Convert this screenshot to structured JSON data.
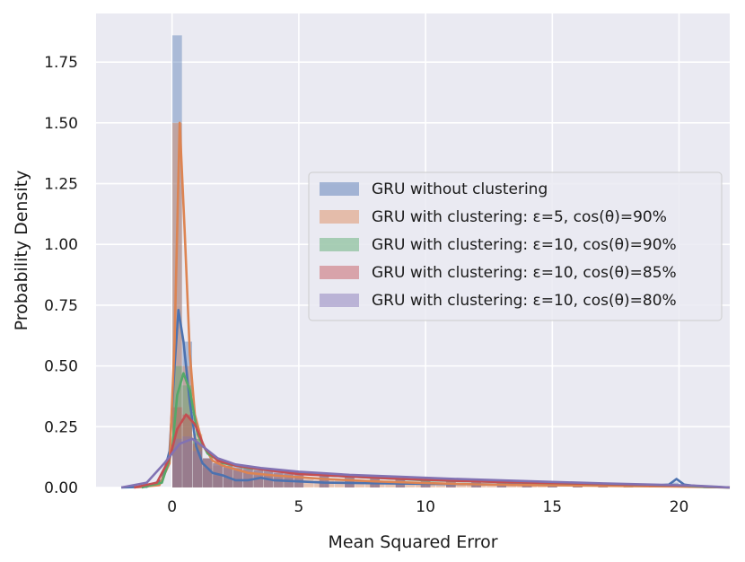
{
  "chart_data": {
    "type": "area",
    "xlabel": "Mean Squared Error",
    "ylabel": "Probability Density",
    "xlim": [
      -3,
      22
    ],
    "ylim": [
      0,
      1.95
    ],
    "xticks": [
      0,
      5,
      10,
      15,
      20
    ],
    "yticks": [
      0.0,
      0.25,
      0.5,
      0.75,
      1.0,
      1.25,
      1.5,
      1.75
    ],
    "xtick_labels": [
      "0",
      "5",
      "10",
      "15",
      "20"
    ],
    "ytick_labels": [
      "0.00",
      "0.25",
      "0.50",
      "0.75",
      "1.00",
      "1.25",
      "1.50",
      "1.75"
    ],
    "grid": true,
    "legend_position": "center-right",
    "bin_width": 0.4,
    "series": [
      {
        "name": "GRU without clustering",
        "color": "#4c72b0",
        "hist": [
          [
            0.2,
            1.86
          ],
          [
            0.6,
            0.6
          ],
          [
            1.0,
            0.2
          ],
          [
            1.4,
            0.08
          ],
          [
            1.8,
            0.05
          ],
          [
            2.2,
            0.04
          ],
          [
            2.6,
            0.03
          ],
          [
            3.0,
            0.03
          ],
          [
            19.8,
            0.02
          ]
        ],
        "kde": [
          [
            -2,
            0
          ],
          [
            -1,
            0.003
          ],
          [
            -0.4,
            0.03
          ],
          [
            -0.1,
            0.15
          ],
          [
            0.1,
            0.5
          ],
          [
            0.25,
            0.73
          ],
          [
            0.45,
            0.6
          ],
          [
            0.7,
            0.35
          ],
          [
            0.95,
            0.17
          ],
          [
            1.2,
            0.1
          ],
          [
            1.6,
            0.06
          ],
          [
            2.0,
            0.05
          ],
          [
            2.5,
            0.03
          ],
          [
            3.0,
            0.03
          ],
          [
            3.5,
            0.04
          ],
          [
            4.0,
            0.03
          ],
          [
            6,
            0.02
          ],
          [
            10,
            0.015
          ],
          [
            15,
            0.01
          ],
          [
            19.0,
            0.008
          ],
          [
            19.6,
            0.012
          ],
          [
            19.9,
            0.035
          ],
          [
            20.2,
            0.012
          ],
          [
            21,
            0.002
          ],
          [
            22,
            0
          ]
        ]
      },
      {
        "name": "GRU with clustering: ε=5, cos(θ)=90%",
        "color": "#dd8452",
        "hist": [
          [
            0.2,
            1.5
          ],
          [
            0.6,
            0.5
          ],
          [
            1.0,
            0.22
          ],
          [
            1.4,
            0.12
          ],
          [
            1.8,
            0.09
          ],
          [
            2.2,
            0.08
          ],
          [
            2.6,
            0.07
          ],
          [
            3.0,
            0.06
          ],
          [
            3.4,
            0.05
          ],
          [
            3.8,
            0.05
          ],
          [
            4.2,
            0.04
          ],
          [
            4.6,
            0.04
          ],
          [
            5.0,
            0.04
          ],
          [
            5.4,
            0.035
          ],
          [
            5.8,
            0.03
          ],
          [
            6.2,
            0.03
          ],
          [
            6.6,
            0.03
          ],
          [
            7.0,
            0.025
          ],
          [
            7.4,
            0.025
          ],
          [
            7.8,
            0.02
          ],
          [
            8.2,
            0.02
          ],
          [
            8.6,
            0.02
          ],
          [
            9.0,
            0.02
          ],
          [
            9.4,
            0.018
          ],
          [
            9.8,
            0.018
          ],
          [
            10.2,
            0.016
          ],
          [
            10.6,
            0.015
          ],
          [
            11.0,
            0.015
          ],
          [
            11.4,
            0.014
          ],
          [
            11.8,
            0.013
          ],
          [
            12.2,
            0.012
          ],
          [
            12.6,
            0.012
          ],
          [
            13.0,
            0.011
          ],
          [
            13.4,
            0.011
          ],
          [
            13.8,
            0.01
          ],
          [
            14.2,
            0.01
          ],
          [
            14.6,
            0.01
          ],
          [
            15.0,
            0.009
          ],
          [
            16.0,
            0.008
          ],
          [
            17.0,
            0.007
          ],
          [
            18.0,
            0.006
          ],
          [
            19.0,
            0.005
          ]
        ],
        "kde": [
          [
            -1.5,
            0
          ],
          [
            -0.5,
            0.01
          ],
          [
            -0.1,
            0.1
          ],
          [
            0.1,
            0.6
          ],
          [
            0.3,
            1.5
          ],
          [
            0.5,
            1.05
          ],
          [
            0.7,
            0.55
          ],
          [
            0.9,
            0.3
          ],
          [
            1.2,
            0.18
          ],
          [
            1.6,
            0.11
          ],
          [
            2.0,
            0.09
          ],
          [
            3.0,
            0.06
          ],
          [
            4.0,
            0.05
          ],
          [
            6.0,
            0.035
          ],
          [
            8.0,
            0.025
          ],
          [
            10.0,
            0.018
          ],
          [
            12.0,
            0.013
          ],
          [
            14.0,
            0.01
          ],
          [
            16.0,
            0.008
          ],
          [
            18.0,
            0.006
          ],
          [
            20.0,
            0.004
          ],
          [
            21.0,
            0.002
          ],
          [
            22,
            0
          ]
        ]
      },
      {
        "name": "GRU with clustering: ε=10, cos(θ)=90%",
        "color": "#55a868",
        "hist": [
          [
            0.2,
            0.5
          ],
          [
            0.6,
            0.42
          ],
          [
            1.0,
            0.2
          ],
          [
            1.4,
            0.12
          ],
          [
            1.8,
            0.1
          ],
          [
            2.2,
            0.09
          ],
          [
            2.6,
            0.08
          ],
          [
            3.0,
            0.08
          ],
          [
            3.4,
            0.07
          ],
          [
            3.8,
            0.07
          ],
          [
            4.2,
            0.06
          ],
          [
            4.6,
            0.06
          ],
          [
            5.0,
            0.055
          ],
          [
            6.0,
            0.05
          ],
          [
            7.0,
            0.045
          ],
          [
            8.0,
            0.04
          ],
          [
            9.0,
            0.035
          ],
          [
            10.0,
            0.03
          ],
          [
            11.0,
            0.028
          ],
          [
            12.0,
            0.025
          ],
          [
            13.0,
            0.022
          ],
          [
            14.0,
            0.02
          ],
          [
            15.0,
            0.018
          ],
          [
            16.0,
            0.016
          ],
          [
            17.0,
            0.014
          ],
          [
            18.0,
            0.012
          ],
          [
            19.0,
            0.01
          ],
          [
            20.0,
            0.008
          ]
        ],
        "kde": [
          [
            -1.2,
            0
          ],
          [
            -0.4,
            0.02
          ],
          [
            0.0,
            0.15
          ],
          [
            0.2,
            0.38
          ],
          [
            0.45,
            0.47
          ],
          [
            0.7,
            0.4
          ],
          [
            1.0,
            0.22
          ],
          [
            1.4,
            0.14
          ],
          [
            2.0,
            0.1
          ],
          [
            3.0,
            0.08
          ],
          [
            4.0,
            0.07
          ],
          [
            6.0,
            0.05
          ],
          [
            8.0,
            0.04
          ],
          [
            10.0,
            0.03
          ],
          [
            12.0,
            0.025
          ],
          [
            14.0,
            0.02
          ],
          [
            16.0,
            0.016
          ],
          [
            18.0,
            0.012
          ],
          [
            20.0,
            0.008
          ],
          [
            21.0,
            0.003
          ],
          [
            22,
            0
          ]
        ]
      },
      {
        "name": "GRU with clustering: ε=10, cos(θ)=85%",
        "color": "#c44e52",
        "hist": [
          [
            0.2,
            0.33
          ],
          [
            0.6,
            0.3
          ],
          [
            1.0,
            0.18
          ],
          [
            1.4,
            0.12
          ],
          [
            1.8,
            0.1
          ],
          [
            2.2,
            0.09
          ],
          [
            2.6,
            0.08
          ],
          [
            3.0,
            0.075
          ],
          [
            3.4,
            0.07
          ],
          [
            3.8,
            0.065
          ],
          [
            4.2,
            0.06
          ],
          [
            4.6,
            0.055
          ],
          [
            5.0,
            0.05
          ],
          [
            6.0,
            0.045
          ],
          [
            7.0,
            0.04
          ],
          [
            8.0,
            0.035
          ],
          [
            9.0,
            0.032
          ],
          [
            10.0,
            0.03
          ],
          [
            11.0,
            0.027
          ],
          [
            12.0,
            0.025
          ],
          [
            13.0,
            0.022
          ],
          [
            14.0,
            0.02
          ],
          [
            15.0,
            0.018
          ],
          [
            16.0,
            0.016
          ],
          [
            17.0,
            0.014
          ],
          [
            18.0,
            0.012
          ],
          [
            19.0,
            0.01
          ],
          [
            20.0,
            0.008
          ]
        ],
        "kde": [
          [
            -1.5,
            0
          ],
          [
            -0.6,
            0.02
          ],
          [
            -0.1,
            0.12
          ],
          [
            0.2,
            0.24
          ],
          [
            0.55,
            0.3
          ],
          [
            0.9,
            0.26
          ],
          [
            1.3,
            0.16
          ],
          [
            1.8,
            0.11
          ],
          [
            2.5,
            0.09
          ],
          [
            3.5,
            0.075
          ],
          [
            5.0,
            0.055
          ],
          [
            7.0,
            0.045
          ],
          [
            9.0,
            0.035
          ],
          [
            11.0,
            0.028
          ],
          [
            13.0,
            0.022
          ],
          [
            15.0,
            0.018
          ],
          [
            17.0,
            0.014
          ],
          [
            19.0,
            0.01
          ],
          [
            20.5,
            0.007
          ],
          [
            21.5,
            0.002
          ],
          [
            22,
            0
          ]
        ]
      },
      {
        "name": "GRU with clustering: ε=10, cos(θ)=80%",
        "color": "#8172b3",
        "hist": [
          [
            0.2,
            0.2
          ],
          [
            0.6,
            0.21
          ],
          [
            1.0,
            0.15
          ],
          [
            1.4,
            0.12
          ],
          [
            1.8,
            0.1
          ],
          [
            2.2,
            0.09
          ],
          [
            2.6,
            0.085
          ],
          [
            3.0,
            0.08
          ],
          [
            3.4,
            0.075
          ],
          [
            3.8,
            0.07
          ],
          [
            4.2,
            0.065
          ],
          [
            4.6,
            0.06
          ],
          [
            5.0,
            0.058
          ],
          [
            6.0,
            0.052
          ],
          [
            7.0,
            0.047
          ],
          [
            8.0,
            0.042
          ],
          [
            9.0,
            0.038
          ],
          [
            10.0,
            0.035
          ],
          [
            11.0,
            0.031
          ],
          [
            12.0,
            0.028
          ],
          [
            13.0,
            0.025
          ],
          [
            14.0,
            0.022
          ],
          [
            15.0,
            0.02
          ],
          [
            16.0,
            0.017
          ],
          [
            17.0,
            0.015
          ],
          [
            18.0,
            0.013
          ],
          [
            19.0,
            0.011
          ],
          [
            20.0,
            0.009
          ]
        ],
        "kde": [
          [
            -2.0,
            0
          ],
          [
            -1.0,
            0.02
          ],
          [
            -0.3,
            0.1
          ],
          [
            0.3,
            0.18
          ],
          [
            0.8,
            0.2
          ],
          [
            1.2,
            0.17
          ],
          [
            1.8,
            0.12
          ],
          [
            2.5,
            0.095
          ],
          [
            3.5,
            0.08
          ],
          [
            5.0,
            0.065
          ],
          [
            7.0,
            0.052
          ],
          [
            9.0,
            0.044
          ],
          [
            11.0,
            0.036
          ],
          [
            13.0,
            0.029
          ],
          [
            15.0,
            0.023
          ],
          [
            17.0,
            0.017
          ],
          [
            19.0,
            0.012
          ],
          [
            20.5,
            0.008
          ],
          [
            21.5,
            0.003
          ],
          [
            22,
            0
          ]
        ]
      }
    ]
  }
}
